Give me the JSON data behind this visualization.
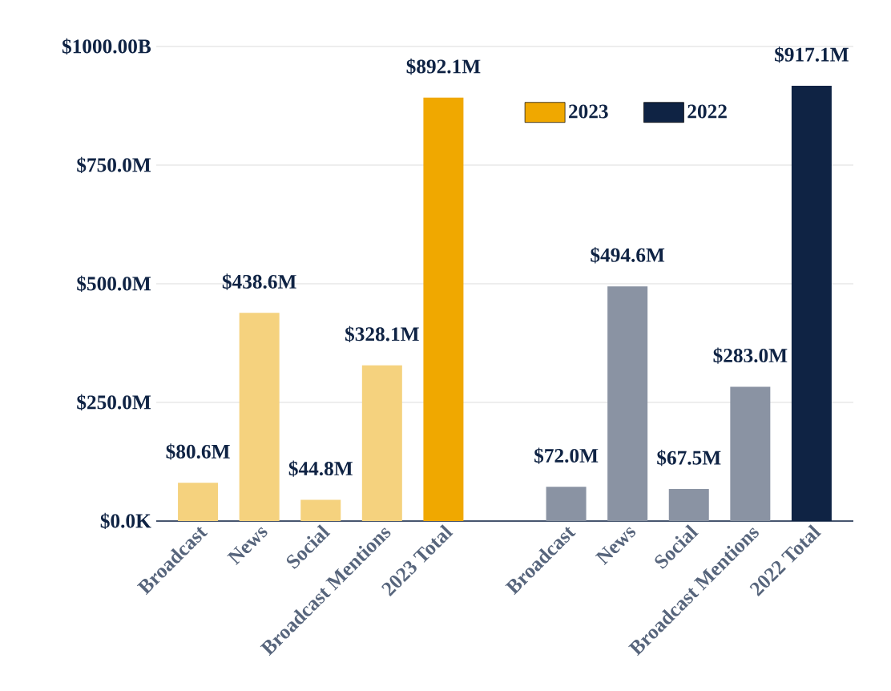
{
  "chart_data": {
    "type": "bar",
    "categories": [
      "Broadcast",
      "News",
      "Social",
      "Broadcast Mentions",
      "2023 Total",
      null,
      "Broadcast",
      "News",
      "Social",
      "Broadcast Mentions",
      "2022 Total"
    ],
    "series": [
      {
        "name": "2023",
        "color": "#f0a800",
        "colors": [
          "#f5d27e",
          "#f5d27e",
          "#f5d27e",
          "#f5d27e",
          "#f0a800",
          null,
          null,
          null,
          null,
          null,
          null
        ],
        "values": [
          80.6,
          438.6,
          44.8,
          328.1,
          892.1,
          null,
          null,
          null,
          null,
          null,
          null
        ],
        "value_labels": [
          "$80.6M",
          "$438.6M",
          "$44.8M",
          "$328.1M",
          "$892.1M",
          null,
          null,
          null,
          null,
          null,
          null
        ]
      },
      {
        "name": "2022",
        "color": "#0f2344",
        "colors": [
          null,
          null,
          null,
          null,
          null,
          null,
          "#8a93a3",
          "#8a93a3",
          "#8a93a3",
          "#8a93a3",
          "#0f2344"
        ],
        "values": [
          null,
          null,
          null,
          null,
          null,
          null,
          72.0,
          494.6,
          67.5,
          283.0,
          917.1
        ],
        "value_labels": [
          null,
          null,
          null,
          null,
          null,
          null,
          "$72.0M",
          "$494.6M",
          "$67.5M",
          "$283.0M",
          "$917.1M"
        ]
      }
    ],
    "ylim": [
      0,
      1000
    ],
    "yticks": [
      {
        "value": 0,
        "label": "$0.0K"
      },
      {
        "value": 250,
        "label": "$250.0M"
      },
      {
        "value": 500,
        "label": "$500.0M"
      },
      {
        "value": 750,
        "label": "$750.0M"
      },
      {
        "value": 1000,
        "label": "$1000.00B"
      }
    ],
    "grid": "y",
    "legend": "top right"
  }
}
